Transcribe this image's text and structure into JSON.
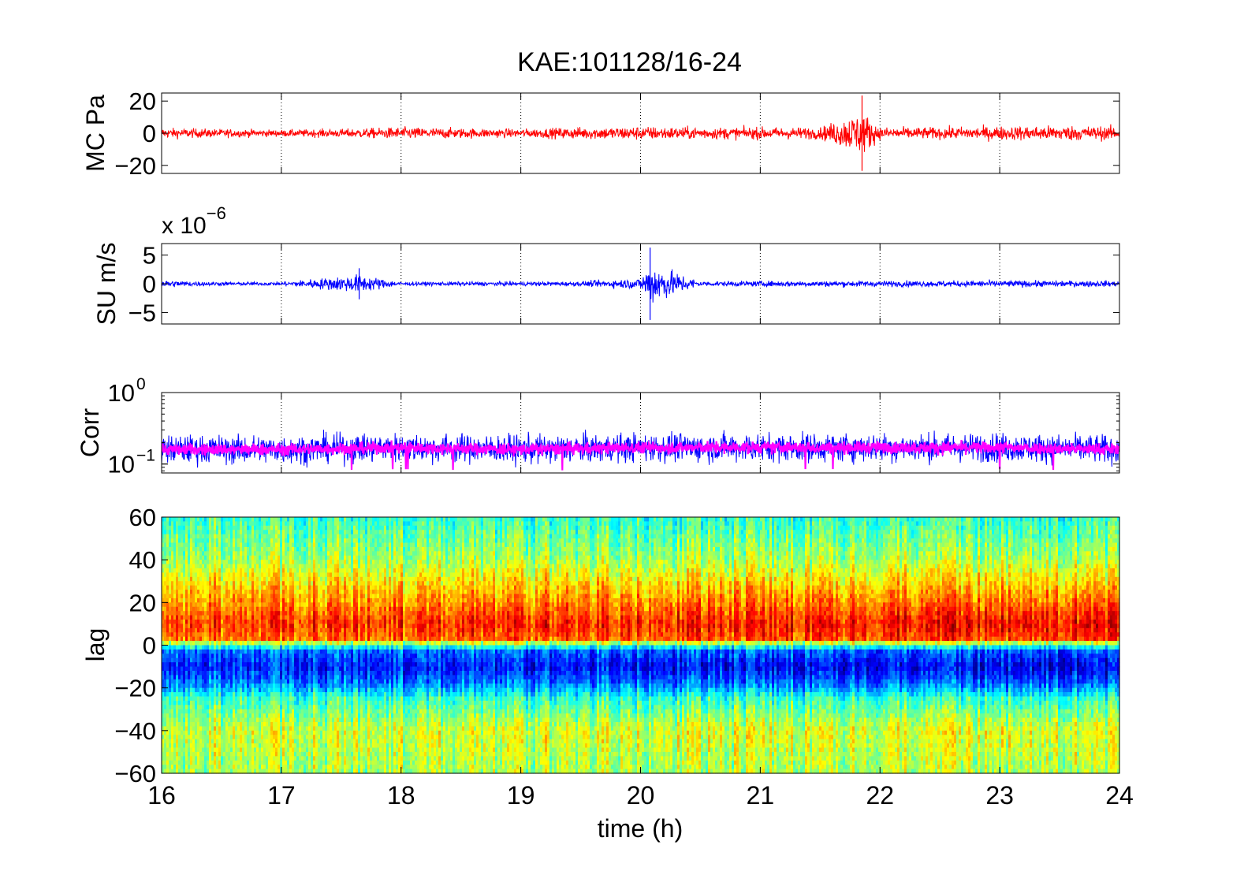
{
  "figure": {
    "title": "KAE:101128/16-24"
  },
  "chart_data": [
    {
      "type": "line",
      "panel": "pressure",
      "ylabel": "MC Pa",
      "xlim": [
        16,
        24
      ],
      "ylim": [
        -25,
        25
      ],
      "yticks": [
        -20,
        0,
        20
      ],
      "ytick_labels": [
        "−20",
        "0",
        "20"
      ],
      "xticks": [
        16,
        17,
        18,
        19,
        20,
        21,
        22,
        23,
        24
      ],
      "grid": "x-dotted",
      "color": "#ff0000",
      "series": [
        {
          "x": [
            16,
            16.5,
            17,
            17.5,
            18,
            18.5,
            19,
            19.5,
            20,
            20.5,
            21,
            21.5,
            21.85,
            22,
            22.5,
            23,
            23.5,
            24
          ],
          "amplitude": [
            6,
            5,
            4,
            5,
            7,
            6,
            5,
            7,
            8,
            7,
            7,
            7,
            26,
            7,
            7,
            8,
            9,
            8
          ]
        }
      ]
    },
    {
      "type": "line",
      "panel": "velocity",
      "ylabel": "SU m/s",
      "multiplier": "x 10",
      "exponent": "−6",
      "xlim": [
        16,
        24
      ],
      "ylim": [
        -7,
        7
      ],
      "yticks": [
        -5,
        0,
        5
      ],
      "ytick_labels": [
        "−5",
        "0",
        "5"
      ],
      "xticks": [
        16,
        17,
        18,
        19,
        20,
        21,
        22,
        23,
        24
      ],
      "grid": "x-dotted",
      "color": "#0000ff",
      "series": [
        {
          "x": [
            16,
            16.5,
            17,
            17.65,
            18,
            18.5,
            19,
            19.5,
            20,
            20.08,
            20.5,
            21,
            21.5,
            22,
            22.5,
            23,
            23.5,
            24
          ],
          "amplitude": [
            1.2,
            0.6,
            0.6,
            3,
            0.6,
            0.7,
            0.7,
            0.8,
            1.8,
            7,
            0.8,
            0.9,
            1,
            1,
            1,
            1.1,
            1,
            1
          ]
        }
      ]
    },
    {
      "type": "line",
      "panel": "correlation",
      "ylabel": "Corr",
      "yscale": "log",
      "ylim": [
        0.075,
        1
      ],
      "yticks": [
        0.1,
        1
      ],
      "ytick_labels": [
        {
          "base": "10",
          "exp": "−1"
        },
        {
          "base": "10",
          "exp": "0"
        }
      ],
      "xlim": [
        16,
        24
      ],
      "xticks": [
        16,
        17,
        18,
        19,
        20,
        21,
        22,
        23,
        24
      ],
      "grid": "x-dotted",
      "series": [
        {
          "color": "#0000ff",
          "x": [
            16,
            17,
            18,
            19,
            20,
            21,
            22,
            23,
            24
          ],
          "y": [
            0.16,
            0.16,
            0.17,
            0.16,
            0.17,
            0.17,
            0.17,
            0.17,
            0.16
          ]
        },
        {
          "color": "#ff00ff",
          "x": [
            16,
            17,
            18,
            19,
            20,
            21,
            22,
            23,
            24
          ],
          "y": [
            0.16,
            0.16,
            0.17,
            0.16,
            0.17,
            0.17,
            0.17,
            0.17,
            0.16
          ]
        }
      ]
    },
    {
      "type": "heatmap",
      "panel": "lag",
      "ylabel": "lag",
      "xlabel": "time (h)",
      "xlim": [
        16,
        24
      ],
      "ylim": [
        -60,
        60
      ],
      "yticks": [
        -60,
        -40,
        -20,
        0,
        20,
        40,
        60
      ],
      "ytick_labels": [
        "−60",
        "−40",
        "−20",
        "0",
        "20",
        "40",
        "60"
      ],
      "xticks": [
        16,
        17,
        18,
        19,
        20,
        21,
        22,
        23,
        24
      ],
      "xtick_labels": [
        "16",
        "17",
        "18",
        "19",
        "20",
        "21",
        "22",
        "23",
        "24"
      ],
      "colormap": "jet",
      "lag_profile": [
        {
          "lag": 60,
          "v": 0.42
        },
        {
          "lag": 40,
          "v": 0.55
        },
        {
          "lag": 25,
          "v": 0.72
        },
        {
          "lag": 10,
          "v": 0.88
        },
        {
          "lag": 3,
          "v": 0.82
        },
        {
          "lag": 0,
          "v": 0.45
        },
        {
          "lag": -3,
          "v": 0.2
        },
        {
          "lag": -10,
          "v": 0.1
        },
        {
          "lag": -18,
          "v": 0.22
        },
        {
          "lag": -25,
          "v": 0.42
        },
        {
          "lag": -40,
          "v": 0.6
        },
        {
          "lag": -60,
          "v": 0.55
        }
      ]
    }
  ]
}
